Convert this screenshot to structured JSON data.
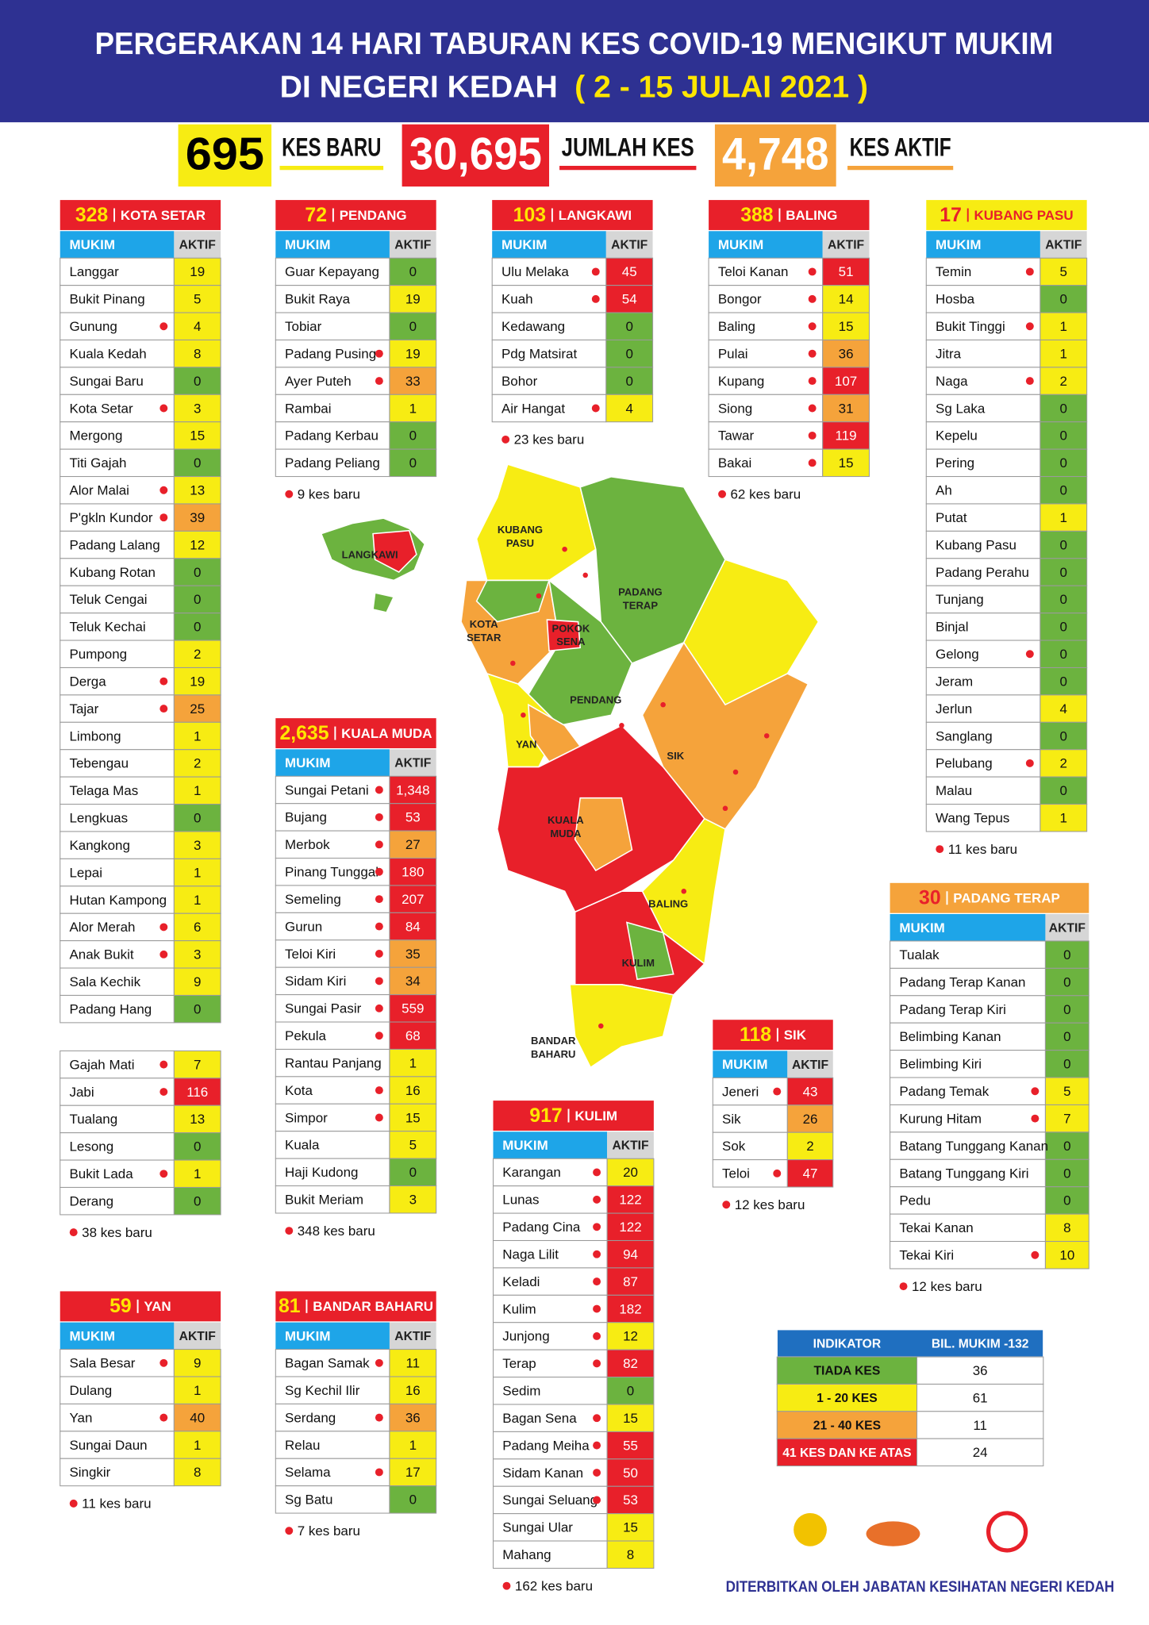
{
  "header": {
    "title_line1": "PERGERAKAN 14 HARI TABURAN KES COVID-19 MENGIKUT MUKIM",
    "title_line2": "DI NEGERI KEDAH",
    "date": "( 2 - 15 JULAI 2021 )"
  },
  "stats": [
    {
      "value": "695",
      "label": "KES BARU"
    },
    {
      "value": "30,695",
      "label": "JUMLAH KES"
    },
    {
      "value": "4,748",
      "label": "KES AKTIF"
    }
  ],
  "columns": [
    "MUKIM",
    "AKTIF"
  ],
  "districts": [
    {
      "total": "328",
      "name": "KOTA SETAR",
      "rows": [
        [
          "Langgar",
          "19",
          false
        ],
        [
          "Bukit Pinang",
          "5",
          false
        ],
        [
          "Gunung",
          "4",
          true
        ],
        [
          "Kuala Kedah",
          "8",
          false
        ],
        [
          "Sungai Baru",
          "0",
          false
        ],
        [
          "Kota Setar",
          "3",
          true
        ],
        [
          "Mergong",
          "15",
          false
        ],
        [
          "Titi Gajah",
          "0",
          false
        ],
        [
          "Alor Malai",
          "13",
          true
        ],
        [
          "P'gkln Kundor",
          "39",
          true
        ],
        [
          "Padang Lalang",
          "12",
          false
        ],
        [
          "Kubang Rotan",
          "0",
          false
        ],
        [
          "Teluk Cengai",
          "0",
          false
        ],
        [
          "Teluk Kechai",
          "0",
          false
        ],
        [
          "Pumpong",
          "2",
          false
        ],
        [
          "Derga",
          "19",
          true
        ],
        [
          "Tajar",
          "25",
          true
        ],
        [
          "Limbong",
          "1",
          false
        ],
        [
          "Tebengau",
          "2",
          false
        ],
        [
          "Telaga Mas",
          "1",
          false
        ],
        [
          "Lengkuas",
          "0",
          false
        ],
        [
          "Kangkong",
          "3",
          false
        ],
        [
          "Lepai",
          "1",
          false
        ],
        [
          "Hutan Kampong",
          "1",
          false
        ],
        [
          "Alor Merah",
          "6",
          true
        ],
        [
          "Anak Bukit",
          "3",
          true
        ],
        [
          "Sala Kechik",
          "9",
          false
        ],
        [
          "Padang Hang",
          "0",
          false
        ],
        [
          "Gajah Mati",
          "7",
          true
        ],
        [
          "Jabi",
          "116",
          true
        ],
        [
          "Tualang",
          "13",
          false
        ],
        [
          "Lesong",
          "0",
          false
        ],
        [
          "Bukit Lada",
          "1",
          true
        ],
        [
          "Derang",
          "0",
          false
        ]
      ],
      "note": "38 kes baru"
    },
    {
      "total": "72",
      "name": "PENDANG",
      "rows": [
        [
          "Guar Kepayang",
          "0",
          false
        ],
        [
          "Bukit Raya",
          "19",
          false
        ],
        [
          "Tobiar",
          "0",
          false
        ],
        [
          "Padang Pusing",
          "19",
          true
        ],
        [
          "Ayer Puteh",
          "33",
          true
        ],
        [
          "Rambai",
          "1",
          false
        ],
        [
          "Padang Kerbau",
          "0",
          false
        ],
        [
          "Padang Peliang",
          "0",
          false
        ]
      ],
      "note": "9 kes baru"
    },
    {
      "total": "103",
      "name": "LANGKAWI",
      "rows": [
        [
          "Ulu Melaka",
          "45",
          true
        ],
        [
          "Kuah",
          "54",
          true
        ],
        [
          "Kedawang",
          "0",
          false
        ],
        [
          "Pdg Matsirat",
          "0",
          false
        ],
        [
          "Bohor",
          "0",
          false
        ],
        [
          "Air Hangat",
          "4",
          true
        ]
      ],
      "note": "23 kes baru"
    },
    {
      "total": "388",
      "name": "BALING",
      "rows": [
        [
          "Teloi Kanan",
          "51",
          true
        ],
        [
          "Bongor",
          "14",
          true
        ],
        [
          "Baling",
          "15",
          true
        ],
        [
          "Pulai",
          "36",
          true
        ],
        [
          "Kupang",
          "107",
          true
        ],
        [
          "Siong",
          "31",
          true
        ],
        [
          "Tawar",
          "119",
          true
        ],
        [
          "Bakai",
          "15",
          true
        ]
      ],
      "note": "62 kes baru"
    },
    {
      "total": "17",
      "name": "KUBANG PASU",
      "rows": [
        [
          "Temin",
          "5",
          true
        ],
        [
          "Hosba",
          "0",
          false
        ],
        [
          "Bukit Tinggi",
          "1",
          true
        ],
        [
          "Jitra",
          "1",
          false
        ],
        [
          "Naga",
          "2",
          true
        ],
        [
          "Sg Laka",
          "0",
          false
        ],
        [
          "Kepelu",
          "0",
          false
        ],
        [
          "Pering",
          "0",
          false
        ],
        [
          "Ah",
          "0",
          false
        ],
        [
          "Putat",
          "1",
          false
        ],
        [
          "Kubang Pasu",
          "0",
          false
        ],
        [
          "Padang Perahu",
          "0",
          false
        ],
        [
          "Tunjang",
          "0",
          false
        ],
        [
          "Binjal",
          "0",
          false
        ],
        [
          "Gelong",
          "0",
          true
        ],
        [
          "Jeram",
          "0",
          false
        ],
        [
          "Jerlun",
          "4",
          false
        ],
        [
          "Sanglang",
          "0",
          false
        ],
        [
          "Pelubang",
          "2",
          true
        ],
        [
          "Malau",
          "0",
          false
        ],
        [
          "Wang Tepus",
          "1",
          false
        ]
      ],
      "note": "11 kes baru"
    },
    {
      "total": "2,635",
      "name": "KUALA MUDA",
      "rows": [
        [
          "Sungai Petani",
          "1,348",
          true
        ],
        [
          "Bujang",
          "53",
          true
        ],
        [
          "Merbok",
          "27",
          true
        ],
        [
          "Pinang Tunggal",
          "180",
          true
        ],
        [
          "Semeling",
          "207",
          true
        ],
        [
          "Gurun",
          "84",
          true
        ],
        [
          "Teloi Kiri",
          "35",
          true
        ],
        [
          "Sidam Kiri",
          "34",
          true
        ],
        [
          "Sungai Pasir",
          "559",
          true
        ],
        [
          "Pekula",
          "68",
          true
        ],
        [
          "Rantau Panjang",
          "1",
          false
        ],
        [
          "Kota",
          "16",
          true
        ],
        [
          "Simpor",
          "15",
          true
        ],
        [
          "Kuala",
          "5",
          false
        ],
        [
          "Haji Kudong",
          "0",
          false
        ],
        [
          "Bukit Meriam",
          "3",
          false
        ]
      ],
      "note": "348 kes baru"
    },
    {
      "total": "30",
      "name": "PADANG TERAP",
      "rows": [
        [
          "Tualak",
          "0",
          false
        ],
        [
          "Padang Terap Kanan",
          "0",
          false
        ],
        [
          "Padang Terap Kiri",
          "0",
          false
        ],
        [
          "Belimbing Kanan",
          "0",
          false
        ],
        [
          "Belimbing Kiri",
          "0",
          false
        ],
        [
          "Padang Temak",
          "5",
          true
        ],
        [
          "Kurung Hitam",
          "7",
          true
        ],
        [
          "Batang Tunggang Kanan",
          "0",
          false
        ],
        [
          "Batang Tunggang Kiri",
          "0",
          false
        ],
        [
          "Pedu",
          "0",
          false
        ],
        [
          "Tekai Kanan",
          "8",
          false
        ],
        [
          "Tekai Kiri",
          "10",
          true
        ]
      ],
      "note": "12 kes baru"
    },
    {
      "total": "118",
      "name": "SIK",
      "rows": [
        [
          "Jeneri",
          "43",
          true
        ],
        [
          "Sik",
          "26",
          false
        ],
        [
          "Sok",
          "2",
          false
        ],
        [
          "Teloi",
          "47",
          true
        ]
      ],
      "note": "12 kes baru"
    },
    {
      "total": "917",
      "name": "KULIM",
      "rows": [
        [
          "Karangan",
          "20",
          true
        ],
        [
          "Lunas",
          "122",
          true
        ],
        [
          "Padang Cina",
          "122",
          true
        ],
        [
          "Naga Lilit",
          "94",
          true
        ],
        [
          "Keladi",
          "87",
          true
        ],
        [
          "Kulim",
          "182",
          true
        ],
        [
          "Junjong",
          "12",
          true
        ],
        [
          "Terap",
          "82",
          true
        ],
        [
          "Sedim",
          "0",
          false
        ],
        [
          "Bagan Sena",
          "15",
          true
        ],
        [
          "Padang Meiha",
          "55",
          true
        ],
        [
          "Sidam Kanan",
          "50",
          true
        ],
        [
          "Sungai Seluang",
          "53",
          true
        ],
        [
          "Sungai Ular",
          "15",
          false
        ],
        [
          "Mahang",
          "8",
          false
        ]
      ],
      "note": "162 kes baru"
    },
    {
      "total": "59",
      "name": "YAN",
      "rows": [
        [
          "Sala Besar",
          "9",
          true
        ],
        [
          "Dulang",
          "1",
          false
        ],
        [
          "Yan",
          "40",
          true
        ],
        [
          "Sungai Daun",
          "1",
          false
        ],
        [
          "Singkir",
          "8",
          false
        ]
      ],
      "note": "11 kes baru"
    },
    {
      "total": "81",
      "name": "BANDAR BAHARU",
      "rows": [
        [
          "Bagan Samak",
          "11",
          true
        ],
        [
          "Sg Kechil Ilir",
          "16",
          false
        ],
        [
          "Serdang",
          "36",
          true
        ],
        [
          "Relau",
          "1",
          false
        ],
        [
          "Selama",
          "17",
          true
        ],
        [
          "Sg Batu",
          "0",
          false
        ]
      ],
      "note": "7 kes baru"
    }
  ],
  "indicator": {
    "header": [
      "INDIKATOR",
      "BIL. MUKIM -132"
    ],
    "rows": [
      [
        "TIADA KES",
        "36"
      ],
      [
        "1 - 20 KES",
        "61"
      ],
      [
        "21 - 40 KES",
        "11"
      ],
      [
        "41 KES DAN KE ATAS",
        "24"
      ]
    ],
    "colors": [
      "#6cb33f",
      "#f7ec13",
      "#f5a33b",
      "#e8202a"
    ]
  },
  "map_labels": [
    [
      "KUBANG",
      "PASU"
    ],
    [
      "LANGKAWI"
    ],
    [
      "PADANG",
      "TERAP"
    ],
    [
      "KOTA",
      "SETAR"
    ],
    [
      "POKOK",
      "SENA"
    ],
    [
      "PENDANG"
    ],
    [
      "YAN"
    ],
    [
      "SIK"
    ],
    [
      "KUALA",
      "MUDA"
    ],
    [
      "BALING"
    ],
    [
      "KULIM"
    ],
    [
      "BANDAR",
      "BAHARU"
    ]
  ],
  "footer": "DITERBITKAN OLEH JABATAN KESIHATAN NEGERI KEDAH"
}
